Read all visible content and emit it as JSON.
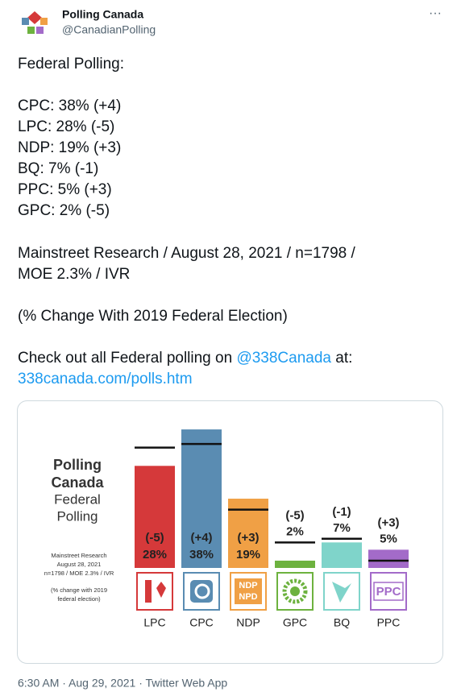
{
  "header": {
    "name": "Polling Canada",
    "handle": "@CanadianPolling",
    "menu": "···"
  },
  "tweet": {
    "intro": "Federal Polling:",
    "lines": [
      "CPC: 38% (+4)",
      "LPC: 28% (-5)",
      "NDP: 19% (+3)",
      "BQ: 7% (-1)",
      "PPC: 5% (+3)",
      "GPC: 2% (-5)"
    ],
    "source_lines": [
      "Mainstreet Research / August 28, 2021 / n=1798 /",
      "MOE 2.3% / IVR"
    ],
    "note": "(% Change With 2019 Federal Election)",
    "cta_start": "Check out all Federal polling on ",
    "mention": "@338Canada",
    "cta_end": " at:",
    "url": "338canada.com/polls.htm"
  },
  "chart_data": {
    "type": "bar",
    "title": [
      "Polling",
      "Canada"
    ],
    "subtitle": [
      "Federal",
      "Polling"
    ],
    "notes": [
      "Mainstreet Research",
      "August 28, 2021",
      "n=1798 / MOE 2.3% / IVR",
      "(% change with 2019",
      "federal election)"
    ],
    "categories": [
      "LPC",
      "CPC",
      "NDP",
      "GPC",
      "BQ",
      "PPC"
    ],
    "values": [
      28,
      38,
      19,
      2,
      7,
      5
    ],
    "value_labels": [
      "28%",
      "38%",
      "19%",
      "2%",
      "7%",
      "5%"
    ],
    "change_labels": [
      "(-5)",
      "(+4)",
      "(+3)",
      "(-5)",
      "(-1)",
      "(+3)"
    ],
    "prior_values": [
      33,
      34,
      16,
      7,
      8,
      2
    ],
    "colors": [
      "#d5393a",
      "#5a8cb2",
      "#f0a045",
      "#6db23f",
      "#7fd4ca",
      "#a36bc9"
    ],
    "ylim": [
      0,
      40
    ],
    "ndp_logo": [
      "NDP",
      "NPD"
    ],
    "ppc_logo": "PPC"
  },
  "footer": "6:30 AM · Aug 29, 2021 · Twitter Web App"
}
